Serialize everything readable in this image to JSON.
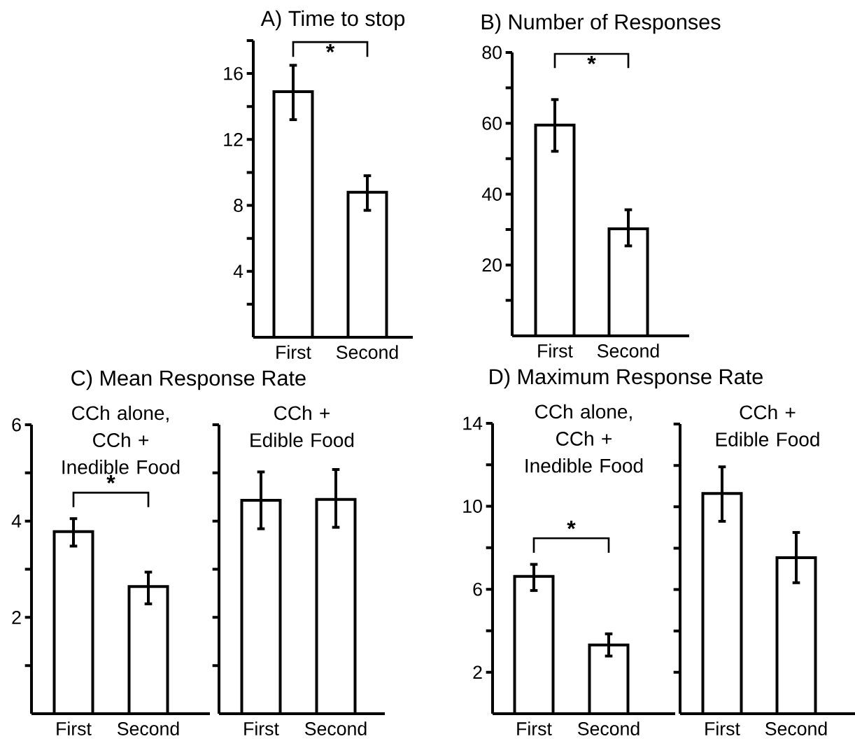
{
  "chart_data": [
    {
      "type": "bar",
      "title": "A) Time to stop",
      "categories": [
        "First",
        "Second"
      ],
      "values": [
        14.9,
        8.8
      ],
      "errors": [
        [
          13.2,
          16.5
        ],
        [
          7.7,
          9.8
        ]
      ],
      "color": "#000000",
      "ylim": [
        0,
        18
      ],
      "yticks": [
        {
          "value": 2,
          "label": null
        },
        4,
        {
          "value": 6,
          "label": null
        },
        8,
        {
          "value": 10,
          "label": null
        },
        12,
        {
          "value": 14,
          "label": null
        },
        16,
        {
          "value": 18,
          "label": null
        }
      ],
      "annotations": [
        "*"
      ]
    },
    {
      "type": "bar",
      "title": "B) Number of Responses",
      "categories": [
        "First",
        "Second"
      ],
      "values": [
        59.5,
        30.2
      ],
      "errors": [
        [
          52.1,
          66.7
        ],
        [
          25.4,
          35.6
        ]
      ],
      "color": "#000000",
      "ylim": [
        0,
        80
      ],
      "yticks": [
        {
          "value": 10,
          "label": null
        },
        20,
        {
          "value": 30,
          "label": null
        },
        40,
        {
          "value": 50,
          "label": null
        },
        60,
        {
          "value": 70,
          "label": null
        },
        80
      ],
      "annotations": [
        "*"
      ]
    },
    {
      "type": "bar",
      "title": "C) Mean Response Rate",
      "subtitle": "CCh alone, CCh + Inedible Food",
      "categories": [
        "First",
        "Second"
      ],
      "values": [
        3.78,
        2.64
      ],
      "errors": [
        [
          3.48,
          4.05
        ],
        [
          2.28,
          2.94
        ]
      ],
      "color": "#000000",
      "ylim": [
        0,
        6
      ],
      "yticks": [
        {
          "value": 1,
          "label": null
        },
        2,
        {
          "value": 3,
          "label": null
        },
        4,
        {
          "value": 5,
          "label": null
        },
        6
      ],
      "annotations": [
        "*"
      ]
    },
    {
      "type": "bar",
      "subtitle": "CCh + Edible Food",
      "categories": [
        "First",
        "Second"
      ],
      "values": [
        4.43,
        4.45
      ],
      "errors": [
        [
          3.84,
          5.02
        ],
        [
          3.87,
          5.07
        ]
      ],
      "color": "#000000",
      "ylim": [
        0,
        6
      ],
      "yticks": [
        1,
        2,
        3,
        4,
        5,
        6
      ],
      "tick_labels": "x"
    },
    {
      "type": "bar",
      "title": "D) Maximum Response Rate",
      "subtitle": "CCh alone, CCh + Inedible Food",
      "categories": [
        "First",
        "Second"
      ],
      "values": [
        6.62,
        3.31
      ],
      "errors": [
        [
          5.94,
          7.2
        ],
        [
          2.78,
          3.85
        ]
      ],
      "color": "#000000",
      "ylim": [
        0,
        14
      ],
      "yticks": [
        2,
        {
          "value": 4,
          "label": null
        },
        6,
        {
          "value": 8,
          "label": null
        },
        10,
        {
          "value": 12,
          "label": null
        },
        14
      ],
      "annotations": [
        "*"
      ]
    },
    {
      "type": "bar",
      "subtitle": "CCh + Edible Food",
      "categories": [
        "First",
        "Second"
      ],
      "values": [
        10.64,
        7.54
      ],
      "errors": [
        [
          9.3,
          11.93
        ],
        [
          6.33,
          8.76
        ]
      ],
      "color": "#000000",
      "ylim": [
        0,
        14
      ],
      "yticks": [
        2,
        4,
        6,
        8,
        10,
        12,
        14
      ],
      "tick_labels": "x"
    }
  ]
}
